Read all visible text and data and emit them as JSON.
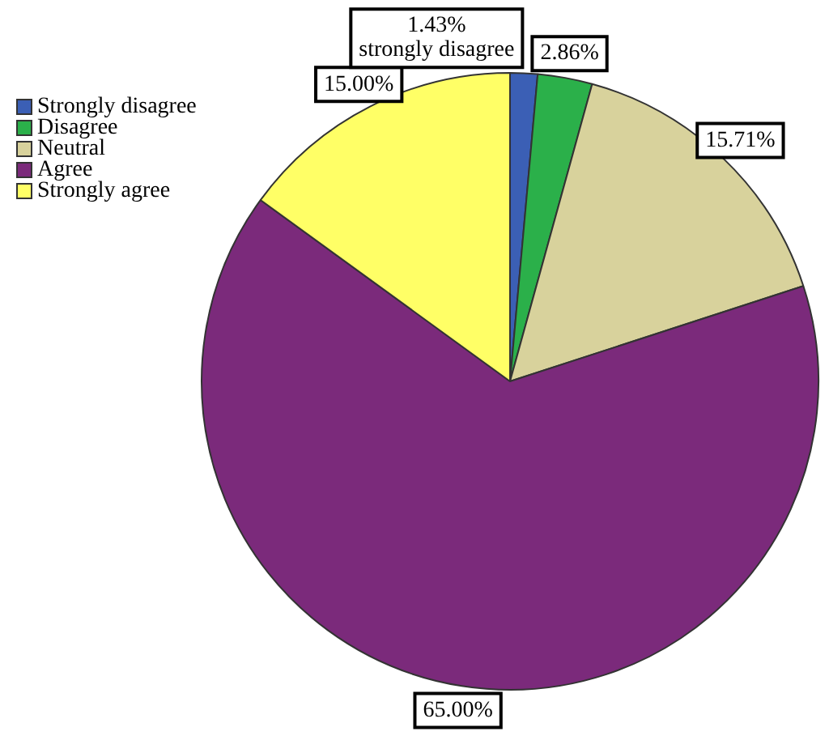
{
  "chart_data": {
    "type": "pie",
    "categories": [
      "Strongly disagree",
      "Disagree",
      "Neutral",
      "Agree",
      "Strongly agree"
    ],
    "values": [
      1.43,
      2.86,
      15.71,
      65.0,
      15.0
    ],
    "colors": [
      "#3b5fb5",
      "#2bb04a",
      "#d8d29c",
      "#7b2a7b",
      "#ffff66"
    ],
    "value_labels": [
      "1.43%\nstrongly disagree",
      "2.86%",
      "15.71%",
      "65.00%",
      "15.00%"
    ],
    "legend": "top left"
  }
}
